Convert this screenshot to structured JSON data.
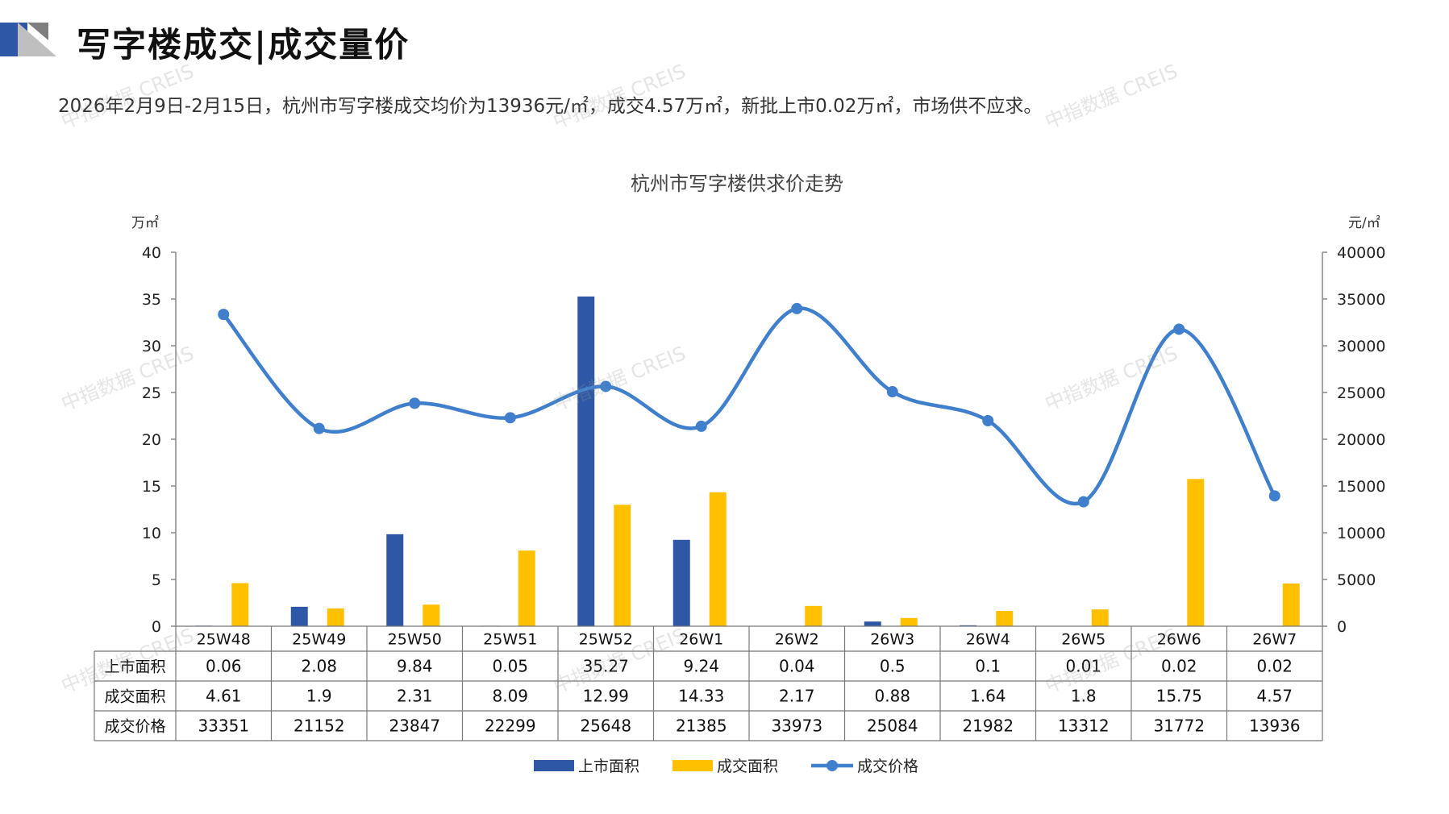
{
  "header": {
    "title": "写字楼成交|成交量价",
    "summary": "2026年2月9日-2月15日，杭州市写字楼成交均价为13936元/㎡，成交4.57万㎡，新批上市0.02万㎡，市场供不应求。"
  },
  "watermark": "中指数据 CREIS",
  "colors": {
    "supply": "#2E58A6",
    "transaction": "#FFC000",
    "price": "#3F7FCC",
    "header_blue": "#2E58A6",
    "header_gray": "#BFBFBF"
  },
  "chart_data": {
    "type": "bar+line",
    "title": "杭州市写字楼供求价走势",
    "left_axis_unit": "万㎡",
    "right_axis_unit": "元/㎡",
    "left_ylim": [
      0,
      40
    ],
    "left_ticks": [
      0,
      5,
      10,
      15,
      20,
      25,
      30,
      35,
      40
    ],
    "right_ylim": [
      0,
      40000
    ],
    "right_ticks": [
      0,
      5000,
      10000,
      15000,
      20000,
      25000,
      30000,
      35000,
      40000
    ],
    "categories": [
      "25W48",
      "25W49",
      "25W50",
      "25W51",
      "25W52",
      "26W1",
      "26W2",
      "26W3",
      "26W4",
      "26W5",
      "26W6",
      "26W7"
    ],
    "series": [
      {
        "name": "上市面积",
        "type": "bar",
        "axis": "left",
        "color": "#2E58A6",
        "values": [
          0.06,
          2.08,
          9.84,
          0.05,
          35.27,
          9.24,
          0.04,
          0.5,
          0.1,
          0.01,
          0.02,
          0.02
        ],
        "labels": [
          "0.06",
          "2.08",
          "9.84",
          "0.05",
          "35.27",
          "9.24",
          "0.04",
          "0.5",
          "0.1",
          "0.01",
          "0.02",
          "0.02"
        ]
      },
      {
        "name": "成交面积",
        "type": "bar",
        "axis": "left",
        "color": "#FFC000",
        "values": [
          4.61,
          1.9,
          2.31,
          8.09,
          12.99,
          14.33,
          2.17,
          0.88,
          1.64,
          1.8,
          15.75,
          4.57
        ],
        "labels": [
          "4.61",
          "1.9",
          "2.31",
          "8.09",
          "12.99",
          "14.33",
          "2.17",
          "0.88",
          "1.64",
          "1.8",
          "15.75",
          "4.57"
        ]
      },
      {
        "name": "成交价格",
        "type": "line",
        "axis": "right",
        "color": "#3F7FCC",
        "smooth": true,
        "markers": true,
        "values": [
          33351,
          21152,
          23847,
          22299,
          25648,
          21385,
          33973,
          25084,
          21982,
          13312,
          31772,
          13936
        ],
        "labels": [
          "33351",
          "21152",
          "23847",
          "22299",
          "25648",
          "21385",
          "33973",
          "25084",
          "21982",
          "13312",
          "31772",
          "13936"
        ]
      }
    ],
    "legend": "bottom",
    "data_table": true,
    "grid": false
  }
}
